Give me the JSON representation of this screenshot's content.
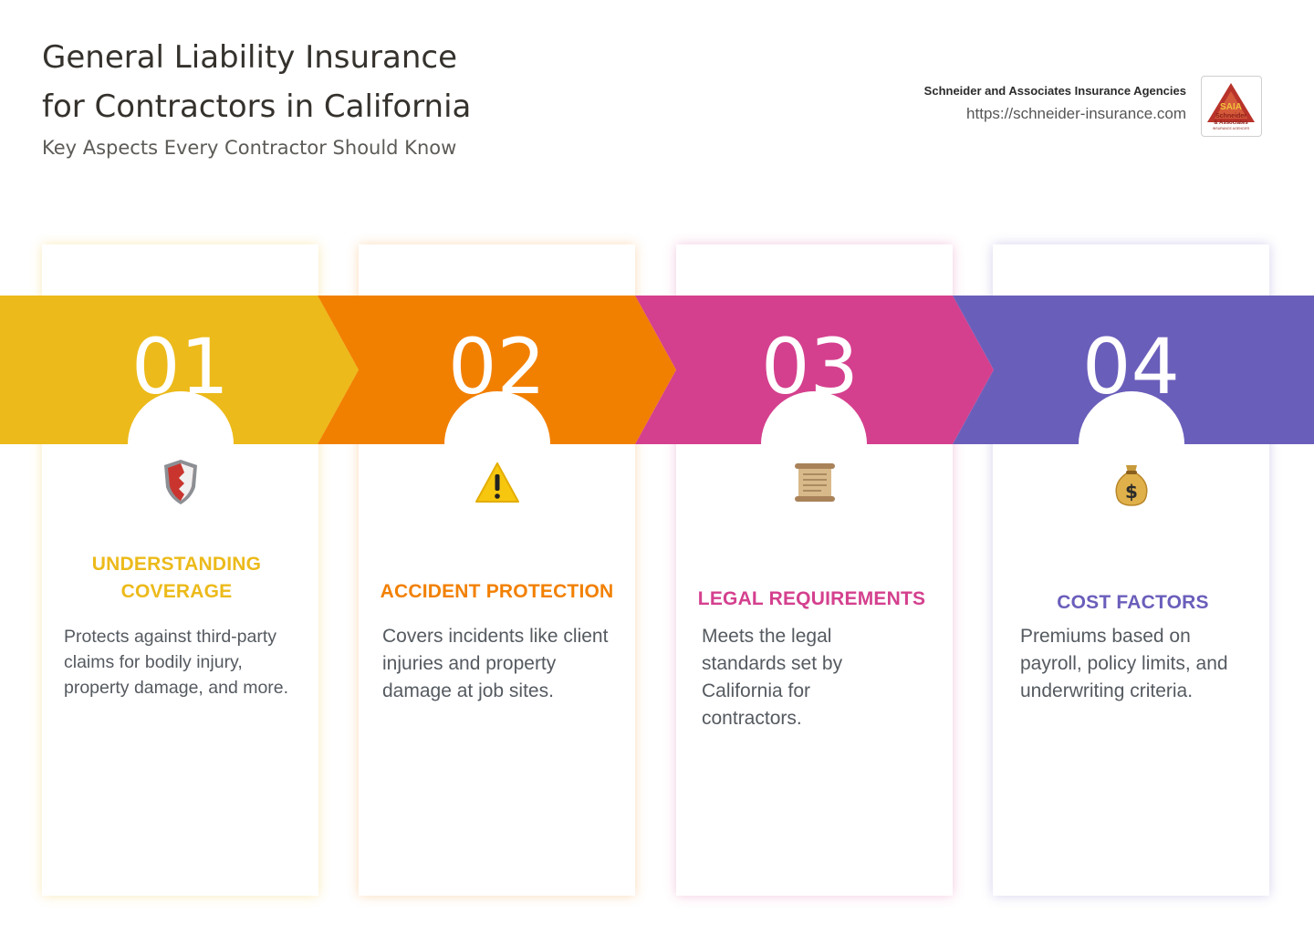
{
  "header": {
    "title_line1": "General Liability Insurance",
    "title_line2": "for Contractors in California",
    "subtitle": "Key Aspects Every Contractor Should Know"
  },
  "brand": {
    "name": "Schneider and Associates Insurance Agencies",
    "url": "https://schneider-insurance.com",
    "logo_text": {
      "monogram": "SAIA",
      "line1": "Schneider",
      "line2": "& Associates",
      "line3": "INSURANCE AGENCIES"
    }
  },
  "steps": [
    {
      "number": "01",
      "heading_line1": "UNDERSTANDING",
      "heading_line2": "COVERAGE",
      "description": "Protects against third-party claims for bodily injury, property damage, and more.",
      "icon": "shield-icon",
      "color": "#ECBA1A"
    },
    {
      "number": "02",
      "heading_line1": "ACCIDENT PROTECTION",
      "heading_line2": "",
      "description": "Covers incidents like client injuries and property damage at job sites.",
      "icon": "warning-icon",
      "color": "#F28000"
    },
    {
      "number": "03",
      "heading_line1": "LEGAL REQUIREMENTS",
      "heading_line2": "",
      "description": "Meets the legal standards set by California for contractors.",
      "icon": "scroll-icon",
      "color": "#D4408E"
    },
    {
      "number": "04",
      "heading_line1": "COST FACTORS",
      "heading_line2": "",
      "description": "Premiums based on payroll, policy limits, and underwriting criteria.",
      "icon": "money-bag-icon",
      "color": "#6A5EBB"
    }
  ]
}
